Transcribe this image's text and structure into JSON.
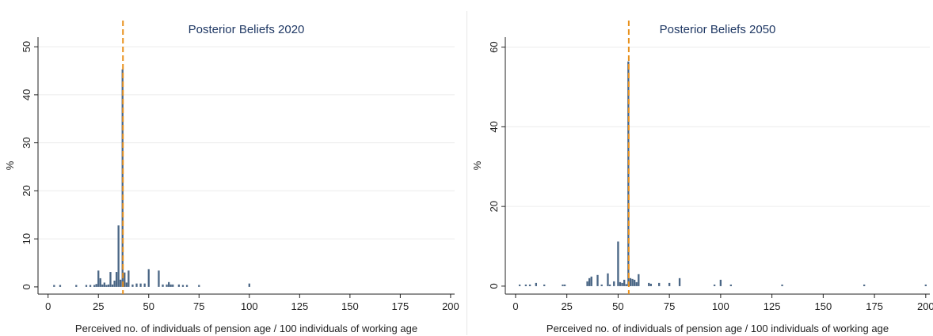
{
  "chart_data": [
    {
      "type": "bar",
      "title": "Posterior Beliefs 2020",
      "xlabel": "Perceived no. of individuals of pension age / 100 individuals of working age",
      "ylabel": "%",
      "xlim": [
        -5,
        202
      ],
      "ylim": [
        -1.5,
        52
      ],
      "xticks": [
        0,
        25,
        50,
        75,
        100,
        125,
        150,
        175,
        200
      ],
      "xtick_labels": [
        "0",
        "25",
        "50",
        "75",
        "100",
        "125",
        "150",
        "175",
        "200"
      ],
      "yticks": [
        0,
        10,
        20,
        30,
        40,
        50
      ],
      "ytick_labels": [
        "0",
        "10",
        "20",
        "30",
        "40",
        "50"
      ],
      "grid": true,
      "reference_line": 37.2,
      "bar_color": "#4a6685",
      "line_color": "#e8901c",
      "x": [
        3,
        6,
        14,
        19,
        21,
        23,
        24,
        25,
        26,
        27,
        28,
        29,
        30,
        31,
        32,
        33,
        34,
        35,
        36,
        37,
        38,
        39,
        40,
        42,
        44,
        46,
        48,
        50,
        55,
        57,
        59,
        60,
        61,
        62,
        65,
        67,
        69,
        75,
        100
      ],
      "values": [
        0.4,
        0.4,
        0.4,
        0.4,
        0.4,
        0.4,
        0.6,
        3.4,
        1.8,
        0.5,
        0.9,
        0.4,
        0.5,
        3.1,
        0.5,
        1.3,
        3.1,
        12.8,
        1.5,
        45.3,
        3.0,
        0.9,
        3.4,
        0.5,
        0.7,
        0.7,
        0.7,
        3.7,
        3.4,
        0.5,
        0.5,
        1.0,
        0.5,
        0.5,
        0.5,
        0.4,
        0.4,
        0.4,
        0.7
      ]
    },
    {
      "type": "bar",
      "title": "Posterior Beliefs 2050",
      "xlabel": "Perceived no. of individuals of pension age / 100 individuals of working age",
      "ylabel": "%",
      "xlim": [
        -5,
        202
      ],
      "ylim": [
        -2,
        62.5
      ],
      "xticks": [
        0,
        25,
        50,
        75,
        100,
        125,
        150,
        175,
        200
      ],
      "xtick_labels": [
        "0",
        "25",
        "50",
        "75",
        "100",
        "125",
        "150",
        "175",
        "200"
      ],
      "yticks": [
        0,
        20,
        40,
        60
      ],
      "ytick_labels": [
        "0",
        "20",
        "40",
        "60"
      ],
      "grid": true,
      "reference_line": 55.2,
      "bar_color": "#4a6685",
      "line_color": "#e8901c",
      "x": [
        2,
        5,
        7,
        10,
        14,
        23,
        24,
        35,
        36,
        37,
        40,
        42,
        45,
        46,
        48,
        50,
        51,
        52,
        53,
        54,
        55,
        56,
        57,
        58,
        59,
        60,
        65,
        66,
        70,
        75,
        80,
        97,
        100,
        105,
        130,
        170,
        200
      ],
      "values": [
        0.4,
        0.4,
        0.4,
        0.8,
        0.4,
        0.4,
        0.4,
        1.2,
        2.0,
        2.4,
        2.8,
        0.4,
        3.2,
        0.4,
        1.2,
        11.2,
        1.0,
        0.8,
        1.6,
        0.5,
        56.4,
        2.0,
        1.8,
        1.6,
        1.0,
        3.0,
        0.8,
        0.6,
        0.8,
        0.8,
        2.0,
        0.4,
        1.6,
        0.4,
        0.4,
        0.4,
        0.4
      ]
    }
  ]
}
